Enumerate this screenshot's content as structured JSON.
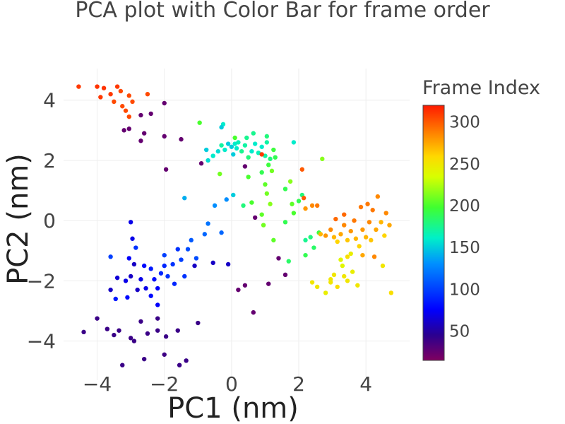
{
  "chart_data": {
    "type": "scatter",
    "title": "PCA plot with Color Bar for frame order",
    "xlabel": "PC1 (nm)",
    "ylabel": "PC2 (nm)",
    "xlim": [
      -5.0,
      5.3
    ],
    "ylim": [
      -5.3,
      5.05
    ],
    "xticks": [
      -4,
      -2,
      0,
      2,
      4
    ],
    "yticks": [
      -4,
      -2,
      0,
      2,
      4
    ],
    "xtick_labels": [
      "−4",
      "−2",
      "0",
      "2",
      "4"
    ],
    "ytick_labels": [
      "−4",
      "−2",
      "0",
      "2",
      "4"
    ],
    "grid": true,
    "colorbar": {
      "title": "Frame Index",
      "range": [
        15,
        320
      ],
      "ticks": [
        50,
        100,
        150,
        200,
        250,
        300
      ],
      "tick_labels": [
        "50",
        "100",
        "150",
        "200",
        "250",
        "300"
      ],
      "colorscale": "rainbow (purple → blue → cyan → green → yellow → orange → red)"
    },
    "points": [
      {
        "x": -3.25,
        "y": -4.8,
        "c": 40
      },
      {
        "x": -2.6,
        "y": -4.6,
        "c": 40
      },
      {
        "x": -2.0,
        "y": -4.45,
        "c": 38
      },
      {
        "x": -1.55,
        "y": -4.8,
        "c": 40
      },
      {
        "x": -1.35,
        "y": -4.65,
        "c": 40
      },
      {
        "x": -4.4,
        "y": -3.7,
        "c": 40
      },
      {
        "x": -4.0,
        "y": -3.25,
        "c": 40
      },
      {
        "x": -3.7,
        "y": -3.6,
        "c": 40
      },
      {
        "x": -3.5,
        "y": -3.8,
        "c": 40
      },
      {
        "x": -3.35,
        "y": -3.65,
        "c": 40
      },
      {
        "x": -3.0,
        "y": -3.9,
        "c": 40
      },
      {
        "x": -2.9,
        "y": -4.0,
        "c": 40
      },
      {
        "x": -2.7,
        "y": -3.35,
        "c": 40
      },
      {
        "x": -2.5,
        "y": -3.75,
        "c": 40
      },
      {
        "x": -2.2,
        "y": -3.65,
        "c": 40
      },
      {
        "x": -1.95,
        "y": -3.85,
        "c": 40
      },
      {
        "x": -1.6,
        "y": -3.65,
        "c": 40
      },
      {
        "x": -1.0,
        "y": -3.4,
        "c": 40
      },
      {
        "x": -2.2,
        "y": -3.25,
        "c": 40
      },
      {
        "x": -2.2,
        "y": -2.8,
        "c": 75
      },
      {
        "x": -3.6,
        "y": -2.3,
        "c": 60
      },
      {
        "x": -3.45,
        "y": -2.6,
        "c": 85
      },
      {
        "x": -3.15,
        "y": -2.0,
        "c": 70
      },
      {
        "x": -3.0,
        "y": -1.85,
        "c": 60
      },
      {
        "x": -2.9,
        "y": -1.45,
        "c": 60
      },
      {
        "x": -2.8,
        "y": -2.3,
        "c": 60
      },
      {
        "x": -2.7,
        "y": -1.95,
        "c": 70
      },
      {
        "x": -2.6,
        "y": -1.5,
        "c": 80
      },
      {
        "x": -2.55,
        "y": -2.25,
        "c": 70
      },
      {
        "x": -2.4,
        "y": -1.6,
        "c": 85
      },
      {
        "x": -2.3,
        "y": -1.95,
        "c": 80
      },
      {
        "x": -2.2,
        "y": -2.25,
        "c": 75
      },
      {
        "x": -2.1,
        "y": -1.75,
        "c": 90
      },
      {
        "x": -2.0,
        "y": -1.5,
        "c": 90
      },
      {
        "x": -1.9,
        "y": -1.85,
        "c": 95
      },
      {
        "x": -1.75,
        "y": -1.45,
        "c": 95
      },
      {
        "x": -1.7,
        "y": -2.1,
        "c": 90
      },
      {
        "x": -1.5,
        "y": -1.3,
        "c": 100
      },
      {
        "x": -1.4,
        "y": -1.85,
        "c": 95
      },
      {
        "x": -1.3,
        "y": -0.95,
        "c": 105
      },
      {
        "x": -1.2,
        "y": -0.65,
        "c": 110
      },
      {
        "x": -1.05,
        "y": -1.25,
        "c": 105
      },
      {
        "x": -0.8,
        "y": -0.45,
        "c": 115
      },
      {
        "x": -0.7,
        "y": -0.1,
        "c": 120
      },
      {
        "x": -0.5,
        "y": 0.5,
        "c": 130
      },
      {
        "x": -0.3,
        "y": -0.4,
        "c": 115
      },
      {
        "x": -2.95,
        "y": -0.6,
        "c": 70
      },
      {
        "x": -3.05,
        "y": -1.25,
        "c": 75
      },
      {
        "x": -3.4,
        "y": -1.9,
        "c": 65
      },
      {
        "x": -3.6,
        "y": -1.2,
        "c": 100
      },
      {
        "x": -2.85,
        "y": -0.9,
        "c": 95
      },
      {
        "x": -2.0,
        "y": -1.15,
        "c": 100
      },
      {
        "x": -1.6,
        "y": -0.95,
        "c": 95
      },
      {
        "x": -3.0,
        "y": -0.05,
        "c": 70
      },
      {
        "x": -0.55,
        "y": -1.4,
        "c": 60
      },
      {
        "x": -0.1,
        "y": -1.45,
        "c": 60
      },
      {
        "x": -3.1,
        "y": -2.55,
        "c": 80
      },
      {
        "x": -1.1,
        "y": -1.5,
        "c": 60
      },
      {
        "x": -2.4,
        "y": -2.5,
        "c": 80
      },
      {
        "x": -4.55,
        "y": 4.45,
        "c": 310
      },
      {
        "x": -4.0,
        "y": 4.45,
        "c": 312
      },
      {
        "x": -3.8,
        "y": 4.4,
        "c": 312
      },
      {
        "x": -3.6,
        "y": 4.2,
        "c": 310
      },
      {
        "x": -3.4,
        "y": 4.45,
        "c": 310
      },
      {
        "x": -3.3,
        "y": 4.3,
        "c": 305
      },
      {
        "x": -3.05,
        "y": 4.15,
        "c": 305
      },
      {
        "x": -2.95,
        "y": 3.95,
        "c": 305
      },
      {
        "x": -3.5,
        "y": 3.95,
        "c": 305
      },
      {
        "x": -3.25,
        "y": 3.8,
        "c": 305
      },
      {
        "x": -3.15,
        "y": 3.65,
        "c": 305
      },
      {
        "x": -3.05,
        "y": 3.45,
        "c": 305
      },
      {
        "x": -2.5,
        "y": 4.2,
        "c": 305
      },
      {
        "x": -3.9,
        "y": 4.1,
        "c": 310
      },
      {
        "x": -3.2,
        "y": 3.0,
        "c": 25
      },
      {
        "x": -3.05,
        "y": 3.05,
        "c": 25
      },
      {
        "x": -2.7,
        "y": 3.5,
        "c": 25
      },
      {
        "x": -2.4,
        "y": 3.55,
        "c": 25
      },
      {
        "x": -2.6,
        "y": 2.9,
        "c": 25
      },
      {
        "x": -2.7,
        "y": 2.65,
        "c": 25
      },
      {
        "x": -2.0,
        "y": 2.8,
        "c": 25
      },
      {
        "x": -1.5,
        "y": 2.7,
        "c": 25
      },
      {
        "x": -1.95,
        "y": 1.7,
        "c": 25
      },
      {
        "x": -2.0,
        "y": 3.9,
        "c": 25
      },
      {
        "x": -1.4,
        "y": 0.75,
        "c": 140
      },
      {
        "x": -0.9,
        "y": 1.9,
        "c": 25
      },
      {
        "x": 0.4,
        "y": 1.8,
        "c": 25
      },
      {
        "x": 0.7,
        "y": 0.1,
        "c": 25
      },
      {
        "x": 1.4,
        "y": -1.25,
        "c": 25
      },
      {
        "x": 1.6,
        "y": -1.8,
        "c": 25
      },
      {
        "x": 1.1,
        "y": -2.1,
        "c": 25
      },
      {
        "x": 0.4,
        "y": -2.15,
        "c": 25
      },
      {
        "x": 0.2,
        "y": -2.3,
        "c": 25
      },
      {
        "x": 0.65,
        "y": -3.05,
        "c": 25
      },
      {
        "x": -0.95,
        "y": 3.25,
        "c": 200
      },
      {
        "x": -0.25,
        "y": 3.2,
        "c": 160
      },
      {
        "x": -0.3,
        "y": 3.1,
        "c": 150
      },
      {
        "x": -0.75,
        "y": 2.35,
        "c": 150
      },
      {
        "x": -0.7,
        "y": 2.0,
        "c": 155
      },
      {
        "x": -0.55,
        "y": 2.15,
        "c": 160
      },
      {
        "x": -0.4,
        "y": 2.3,
        "c": 155
      },
      {
        "x": -0.3,
        "y": 2.5,
        "c": 170
      },
      {
        "x": -0.2,
        "y": 2.35,
        "c": 160
      },
      {
        "x": -0.1,
        "y": 2.55,
        "c": 150
      },
      {
        "x": 0.0,
        "y": 2.45,
        "c": 150
      },
      {
        "x": 0.05,
        "y": 2.2,
        "c": 150
      },
      {
        "x": 0.1,
        "y": 2.55,
        "c": 160
      },
      {
        "x": 0.15,
        "y": 2.4,
        "c": 160
      },
      {
        "x": 0.2,
        "y": 2.6,
        "c": 165
      },
      {
        "x": 0.3,
        "y": 2.3,
        "c": 175
      },
      {
        "x": 0.4,
        "y": 2.5,
        "c": 170
      },
      {
        "x": 0.5,
        "y": 2.1,
        "c": 180
      },
      {
        "x": 0.6,
        "y": 2.3,
        "c": 160
      },
      {
        "x": 0.7,
        "y": 2.55,
        "c": 160
      },
      {
        "x": 0.8,
        "y": 2.25,
        "c": 165
      },
      {
        "x": 0.9,
        "y": 2.45,
        "c": 160
      },
      {
        "x": 1.0,
        "y": 2.15,
        "c": 170
      },
      {
        "x": 1.05,
        "y": 2.6,
        "c": 170
      },
      {
        "x": 1.15,
        "y": 2.05,
        "c": 180
      },
      {
        "x": 1.25,
        "y": 2.35,
        "c": 195
      },
      {
        "x": 1.3,
        "y": 2.1,
        "c": 190
      },
      {
        "x": 0.45,
        "y": 2.75,
        "c": 175
      },
      {
        "x": 0.65,
        "y": 2.9,
        "c": 175
      },
      {
        "x": 1.05,
        "y": 2.8,
        "c": 180
      },
      {
        "x": 0.1,
        "y": 2.75,
        "c": 200
      },
      {
        "x": -0.35,
        "y": 1.55,
        "c": 210
      },
      {
        "x": 0.5,
        "y": 1.45,
        "c": 200
      },
      {
        "x": 0.9,
        "y": 1.6,
        "c": 190
      },
      {
        "x": 1.1,
        "y": 1.85,
        "c": 195
      },
      {
        "x": 1.2,
        "y": 1.65,
        "c": 210
      },
      {
        "x": 0.05,
        "y": 0.85,
        "c": 150
      },
      {
        "x": -0.15,
        "y": 0.7,
        "c": 130
      },
      {
        "x": 0.35,
        "y": 0.5,
        "c": 180
      },
      {
        "x": 1.0,
        "y": 1.2,
        "c": 205
      },
      {
        "x": 1.05,
        "y": 0.9,
        "c": 210
      },
      {
        "x": 0.6,
        "y": 0.6,
        "c": 200
      },
      {
        "x": 1.15,
        "y": 0.55,
        "c": 215
      },
      {
        "x": 0.9,
        "y": 0.2,
        "c": 205
      },
      {
        "x": 1.75,
        "y": 1.3,
        "c": 215
      },
      {
        "x": 1.6,
        "y": 1.05,
        "c": 190
      },
      {
        "x": 1.8,
        "y": 0.55,
        "c": 205
      },
      {
        "x": 1.85,
        "y": 0.25,
        "c": 200
      },
      {
        "x": 2.0,
        "y": 0.65,
        "c": 190
      },
      {
        "x": 2.1,
        "y": 0.85,
        "c": 180
      },
      {
        "x": 1.6,
        "y": -0.05,
        "c": 190
      },
      {
        "x": 0.95,
        "y": -0.15,
        "c": 210
      },
      {
        "x": 1.25,
        "y": -0.65,
        "c": 205
      },
      {
        "x": 1.7,
        "y": -1.35,
        "c": 185
      },
      {
        "x": 2.2,
        "y": -0.65,
        "c": 175
      },
      {
        "x": 2.35,
        "y": -0.55,
        "c": 180
      },
      {
        "x": 2.2,
        "y": -1.15,
        "c": 190
      },
      {
        "x": 2.45,
        "y": -0.9,
        "c": 185
      },
      {
        "x": 2.6,
        "y": -0.4,
        "c": 195
      },
      {
        "x": 2.7,
        "y": 2.05,
        "c": 215
      },
      {
        "x": 1.85,
        "y": 2.6,
        "c": 160
      },
      {
        "x": 2.2,
        "y": 0.4,
        "c": 280
      },
      {
        "x": 2.4,
        "y": 0.5,
        "c": 285
      },
      {
        "x": 2.55,
        "y": 0.5,
        "c": 290
      },
      {
        "x": 2.1,
        "y": 1.7,
        "c": 300
      },
      {
        "x": 0.9,
        "y": 2.2,
        "c": 310
      },
      {
        "x": 2.15,
        "y": 0.75,
        "c": 300
      },
      {
        "x": 2.4,
        "y": -2.05,
        "c": 250
      },
      {
        "x": 2.55,
        "y": -2.2,
        "c": 250
      },
      {
        "x": 2.8,
        "y": -2.4,
        "c": 245
      },
      {
        "x": 2.95,
        "y": -2.05,
        "c": 250
      },
      {
        "x": 3.05,
        "y": -1.8,
        "c": 250
      },
      {
        "x": 3.15,
        "y": -2.2,
        "c": 255
      },
      {
        "x": 3.3,
        "y": -1.5,
        "c": 240
      },
      {
        "x": 3.35,
        "y": -1.85,
        "c": 250
      },
      {
        "x": 3.45,
        "y": -2.0,
        "c": 250
      },
      {
        "x": 3.6,
        "y": -1.7,
        "c": 245
      },
      {
        "x": 3.75,
        "y": -2.15,
        "c": 250
      },
      {
        "x": 3.55,
        "y": -1.1,
        "c": 245
      },
      {
        "x": 3.25,
        "y": -1.3,
        "c": 240
      },
      {
        "x": 2.95,
        "y": -1.95,
        "c": 250
      },
      {
        "x": 4.75,
        "y": -2.4,
        "c": 255
      },
      {
        "x": 4.5,
        "y": -1.5,
        "c": 250
      },
      {
        "x": 2.65,
        "y": -0.45,
        "c": 270
      },
      {
        "x": 2.8,
        "y": -0.5,
        "c": 280
      },
      {
        "x": 2.95,
        "y": -0.3,
        "c": 285
      },
      {
        "x": 3.05,
        "y": -0.55,
        "c": 270
      },
      {
        "x": 3.15,
        "y": -0.7,
        "c": 260
      },
      {
        "x": 3.25,
        "y": -0.45,
        "c": 275
      },
      {
        "x": 3.35,
        "y": -0.15,
        "c": 285
      },
      {
        "x": 3.45,
        "y": -0.65,
        "c": 265
      },
      {
        "x": 3.55,
        "y": -0.35,
        "c": 280
      },
      {
        "x": 3.65,
        "y": 0.0,
        "c": 290
      },
      {
        "x": 3.7,
        "y": -0.6,
        "c": 270
      },
      {
        "x": 3.8,
        "y": -0.85,
        "c": 260
      },
      {
        "x": 3.9,
        "y": -0.3,
        "c": 280
      },
      {
        "x": 4.0,
        "y": -0.55,
        "c": 270
      },
      {
        "x": 4.1,
        "y": -0.05,
        "c": 285
      },
      {
        "x": 4.15,
        "y": -0.65,
        "c": 265
      },
      {
        "x": 4.2,
        "y": 0.35,
        "c": 290
      },
      {
        "x": 4.3,
        "y": -0.3,
        "c": 275
      },
      {
        "x": 4.35,
        "y": 0.8,
        "c": 285
      },
      {
        "x": 4.45,
        "y": -0.05,
        "c": 270
      },
      {
        "x": 4.55,
        "y": -0.5,
        "c": 260
      },
      {
        "x": 4.6,
        "y": 0.25,
        "c": 285
      },
      {
        "x": 4.7,
        "y": -0.15,
        "c": 275
      },
      {
        "x": 3.35,
        "y": 0.2,
        "c": 295
      },
      {
        "x": 3.1,
        "y": 0.05,
        "c": 295
      },
      {
        "x": 4.05,
        "y": 0.55,
        "c": 290
      },
      {
        "x": 3.85,
        "y": 0.45,
        "c": 290
      },
      {
        "x": 4.25,
        "y": -1.2,
        "c": 285
      },
      {
        "x": 3.9,
        "y": -1.15,
        "c": 275
      },
      {
        "x": 3.45,
        "y": -1.2,
        "c": 255
      }
    ]
  }
}
